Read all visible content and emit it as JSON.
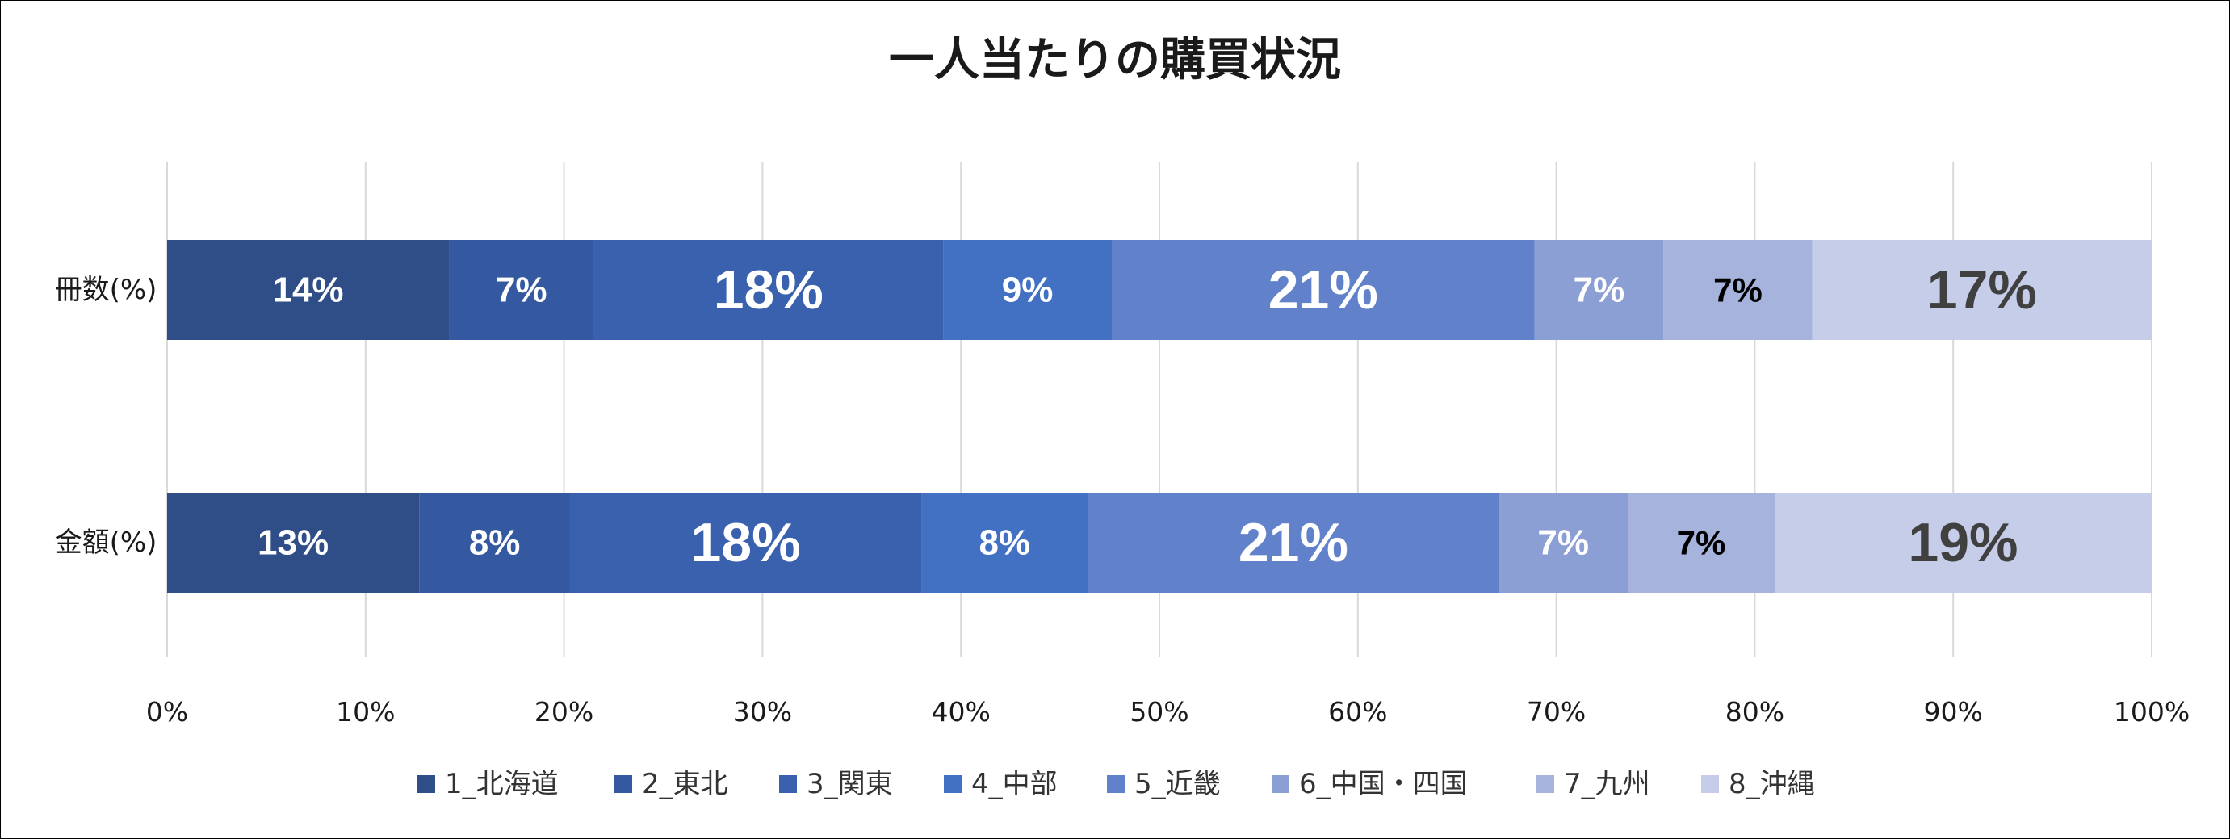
{
  "chart_data": {
    "type": "bar",
    "orientation": "horizontal",
    "stacked": "percent",
    "title": "一人当たりの購買状況",
    "xlabel": "",
    "ylabel": "",
    "xlim": [
      0,
      100
    ],
    "x_ticks": [
      "0%",
      "10%",
      "20%",
      "30%",
      "40%",
      "50%",
      "60%",
      "70%",
      "80%",
      "90%",
      "100%"
    ],
    "grid": true,
    "legend_position": "bottom",
    "categories": [
      "冊数(%)",
      "金額(%)"
    ],
    "series": [
      {
        "name": "1_北海道",
        "color": "#2F4E87",
        "values": [
          14.2,
          12.7
        ],
        "labels": [
          "14%",
          "13%"
        ]
      },
      {
        "name": "2_東北",
        "color": "#3459A1",
        "values": [
          7.3,
          7.6
        ],
        "labels": [
          "7%",
          "8%"
        ]
      },
      {
        "name": "3_関東",
        "color": "#3961AE",
        "values": [
          17.6,
          17.7
        ],
        "labels": [
          "18%",
          "18%"
        ]
      },
      {
        "name": "4_中部",
        "color": "#4271C4",
        "values": [
          8.5,
          8.4
        ],
        "labels": [
          "9%",
          "8%"
        ]
      },
      {
        "name": "5_近畿",
        "color": "#6181CA",
        "values": [
          21.3,
          20.7
        ],
        "labels": [
          "21%",
          "21%"
        ]
      },
      {
        "name": "6_中国・四国",
        "color": "#8C9FD4",
        "values": [
          6.5,
          6.5
        ],
        "labels": [
          "7%",
          "7%"
        ]
      },
      {
        "name": "7_九州",
        "color": "#A6B3DD",
        "values": [
          7.5,
          7.4
        ],
        "labels": [
          "7%",
          "7%"
        ]
      },
      {
        "name": "8_沖縄",
        "color": "#C5CDE8",
        "values": [
          17.1,
          19.0
        ],
        "labels": [
          "17%",
          "19%"
        ]
      }
    ]
  }
}
